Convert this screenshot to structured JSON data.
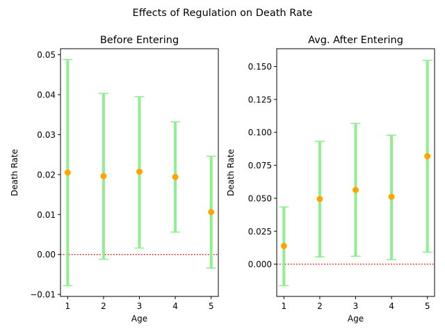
{
  "figure": {
    "suptitle": "Effects of Regulation on Death Rate"
  },
  "colors": {
    "errorbar": "#90ee90",
    "point": "#ffa500",
    "reference_line": "#ff0000",
    "axes": "#000000"
  },
  "chart_data": [
    {
      "type": "scatter",
      "title": "Before Entering",
      "xlabel": "Age",
      "ylabel": "Death Rate",
      "grid": false,
      "xlim": [
        0.8,
        5.2
      ],
      "ylim": [
        -0.0105,
        0.0515
      ],
      "xticks": [
        1,
        2,
        3,
        4,
        5
      ],
      "xtick_labels": [
        "1",
        "2",
        "3",
        "4",
        "5"
      ],
      "yticks": [
        -0.01,
        0.0,
        0.01,
        0.02,
        0.03,
        0.04,
        0.05
      ],
      "ytick_labels": [
        "−0.01",
        "0.00",
        "0.01",
        "0.02",
        "0.03",
        "0.04",
        "0.05"
      ],
      "reference_line": {
        "y": 0.0,
        "style": "dotted"
      },
      "x": [
        1,
        2,
        3,
        4,
        5
      ],
      "y": [
        0.0205,
        0.0196,
        0.0207,
        0.0194,
        0.0106
      ],
      "err_low": [
        -0.0078,
        -0.0012,
        0.0016,
        0.0056,
        -0.0034
      ],
      "err_high": [
        0.0488,
        0.0403,
        0.0395,
        0.0332,
        0.0246
      ]
    },
    {
      "type": "scatter",
      "title": "Avg. After Entering",
      "xlabel": "Age",
      "ylabel": "Death Rate",
      "grid": false,
      "xlim": [
        0.8,
        5.2
      ],
      "ylim": [
        -0.0245,
        0.1635
      ],
      "xticks": [
        1,
        2,
        3,
        4,
        5
      ],
      "xtick_labels": [
        "1",
        "2",
        "3",
        "4",
        "5"
      ],
      "yticks": [
        0.0,
        0.025,
        0.05,
        0.075,
        0.1,
        0.125,
        0.15
      ],
      "ytick_labels": [
        "0.000",
        "0.025",
        "0.050",
        "0.075",
        "0.100",
        "0.125",
        "0.150"
      ],
      "reference_line": {
        "y": 0.0,
        "style": "dotted"
      },
      "x": [
        1,
        2,
        3,
        4,
        5
      ],
      "y": [
        0.0138,
        0.0494,
        0.0563,
        0.0511,
        0.0819
      ],
      "err_low": [
        -0.0163,
        0.0055,
        0.006,
        0.0034,
        0.0091
      ],
      "err_high": [
        0.0434,
        0.0932,
        0.1068,
        0.0979,
        0.1547
      ]
    }
  ]
}
